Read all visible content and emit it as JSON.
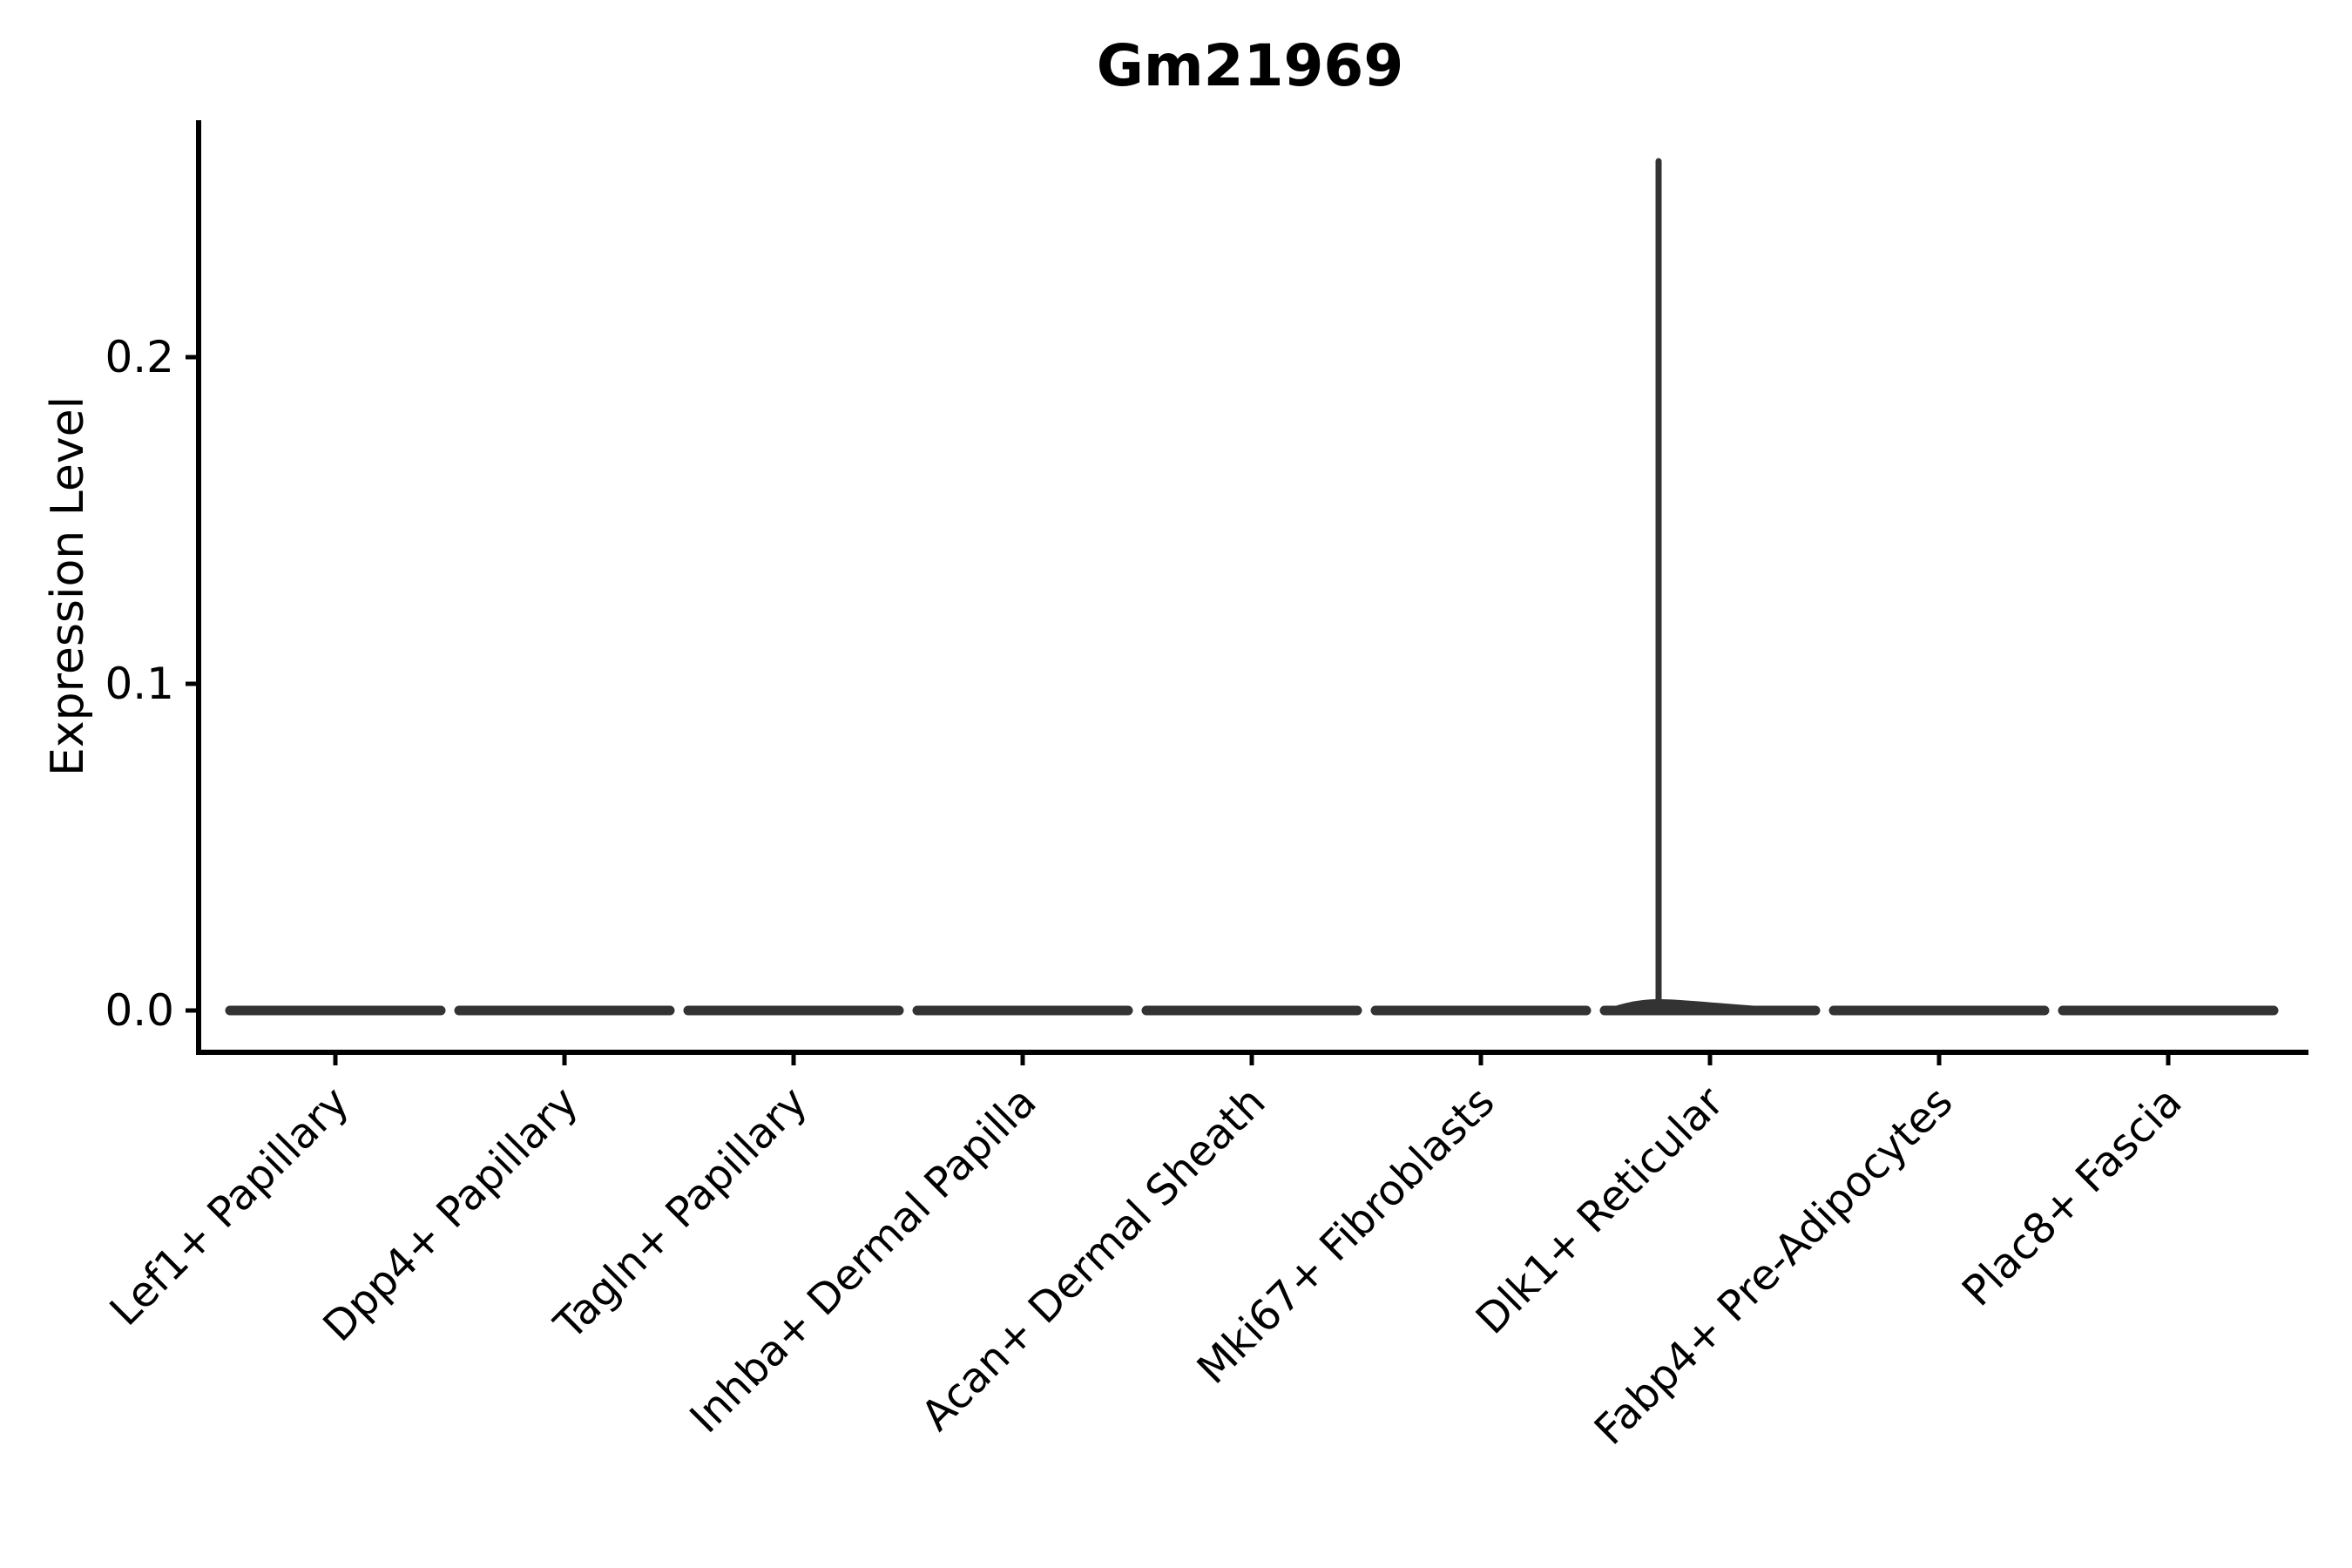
{
  "chart_data": {
    "type": "violin",
    "title": "Gm21969",
    "xlabel": "",
    "ylabel": "Expression Level",
    "categories": [
      "Lef1+ Papillary",
      "Dpp4+ Papillary",
      "Tagln+ Papillary",
      "Inhba+ Dermal Papilla",
      "Acan+ Dermal Sheath",
      "Mki67+ Fibroblasts",
      "Dlk1+ Reticular",
      "Fabp4+ Pre-Adipocytes",
      "Plac8+ Fascia"
    ],
    "series": [
      {
        "name": "Lef1+ Papillary",
        "median": 0.0,
        "min": 0.0,
        "max": 0.0
      },
      {
        "name": "Dpp4+ Papillary",
        "median": 0.0,
        "min": 0.0,
        "max": 0.0
      },
      {
        "name": "Tagln+ Papillary",
        "median": 0.0,
        "min": 0.0,
        "max": 0.0
      },
      {
        "name": "Inhba+ Dermal Papilla",
        "median": 0.0,
        "min": 0.0,
        "max": 0.0
      },
      {
        "name": "Acan+ Dermal Sheath",
        "median": 0.0,
        "min": 0.0,
        "max": 0.0
      },
      {
        "name": "Mki67+ Fibroblasts",
        "median": 0.0,
        "min": 0.0,
        "max": 0.0
      },
      {
        "name": "Dlk1+ Reticular",
        "median": 0.0,
        "min": 0.0,
        "max": 0.26
      },
      {
        "name": "Fabp4+ Pre-Adipocytes",
        "median": 0.0,
        "min": 0.0,
        "max": 0.0
      },
      {
        "name": "Plac8+ Fascia",
        "median": 0.0,
        "min": 0.0,
        "max": 0.0
      }
    ],
    "ytick_labels": [
      "0.0",
      "0.1",
      "0.2"
    ],
    "ytick_values": [
      0.0,
      0.1,
      0.2
    ],
    "ylim": [
      0.0,
      0.2725
    ],
    "grid": false,
    "legend": "none"
  },
  "colors": {
    "violin": "#333333",
    "axis": "#000000",
    "text": "#000000",
    "background": "#ffffff"
  }
}
